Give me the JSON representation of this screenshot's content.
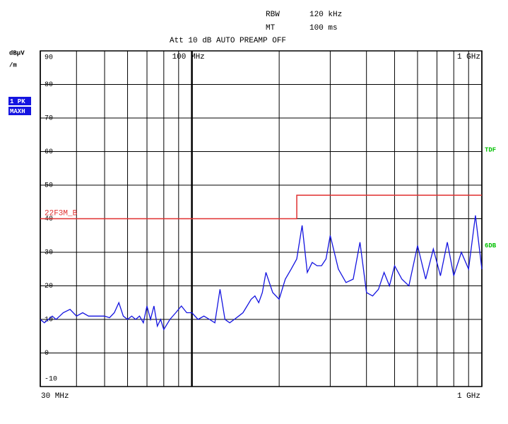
{
  "chart_data": {
    "type": "line",
    "header": {
      "rbw_label": "RBW",
      "rbw": "120 kHz",
      "mt_label": "MT",
      "mt": "100 ms",
      "settings": "Att 10 dB AUTO PREAMP OFF"
    },
    "y_unit": [
      "dBµV",
      "/m"
    ],
    "trace_labels": [
      "1 PK",
      "MAXH"
    ],
    "xscale": "log",
    "xlim": [
      30,
      1000
    ],
    "ylim": [
      -10,
      90
    ],
    "yticks": [
      -10,
      0,
      10,
      20,
      30,
      40,
      50,
      60,
      70,
      80,
      90
    ],
    "xticks": [
      {
        "value": 30,
        "label": "30 MHz"
      },
      {
        "value": 100,
        "label": "100 MHz"
      },
      {
        "value": 1000,
        "label": "1 GHz"
      }
    ],
    "xgrid": [
      40,
      50,
      60,
      70,
      80,
      90,
      200,
      300,
      400,
      500,
      600,
      700,
      800,
      900
    ],
    "grid": true,
    "limit_lines": [
      {
        "name": "22F3M_B",
        "color": "#e03030",
        "x": [
          30,
          230,
          230,
          1000
        ],
        "values": [
          40,
          40,
          47,
          47
        ]
      }
    ],
    "annotations": [
      {
        "text": "TDF",
        "value": 60.5,
        "color": "#00c000"
      },
      {
        "text": "6DB",
        "value": 32,
        "color": "#00c000"
      }
    ],
    "x": [
      30,
      31,
      32,
      33,
      34,
      35,
      36,
      38,
      40,
      42,
      44,
      46,
      48,
      50,
      52,
      54,
      56,
      58,
      60,
      62,
      64,
      66,
      68,
      70,
      72,
      74,
      76,
      78,
      80,
      84,
      88,
      92,
      96,
      100,
      105,
      110,
      115,
      120,
      125,
      130,
      135,
      140,
      145,
      150,
      155,
      160,
      165,
      170,
      175,
      180,
      190,
      200,
      210,
      220,
      230,
      240,
      250,
      260,
      270,
      280,
      290,
      300,
      320,
      340,
      360,
      380,
      400,
      420,
      440,
      460,
      480,
      500,
      530,
      560,
      600,
      640,
      680,
      720,
      760,
      800,
      850,
      900,
      950,
      1000
    ],
    "series": [
      {
        "name": "1 PK MAXH",
        "color": "#1414e0",
        "values": [
          10,
          9,
          10,
          11,
          10,
          11,
          12,
          13,
          11,
          12,
          11,
          11,
          11,
          11,
          10.5,
          12,
          15,
          11,
          10,
          11,
          10,
          11,
          9,
          14,
          10,
          14,
          8,
          10,
          7,
          10,
          12,
          14,
          12,
          12,
          10,
          11,
          10,
          9,
          19,
          10,
          9,
          10,
          11,
          12,
          14,
          16,
          17,
          15,
          18,
          24,
          18,
          16,
          22,
          25,
          28,
          38,
          24,
          27,
          26,
          26,
          28,
          35,
          25,
          21,
          22,
          33,
          18,
          17,
          19,
          24,
          20,
          26,
          22,
          20,
          32,
          22,
          31,
          23,
          33,
          23,
          30,
          25,
          41,
          25
        ]
      }
    ]
  }
}
